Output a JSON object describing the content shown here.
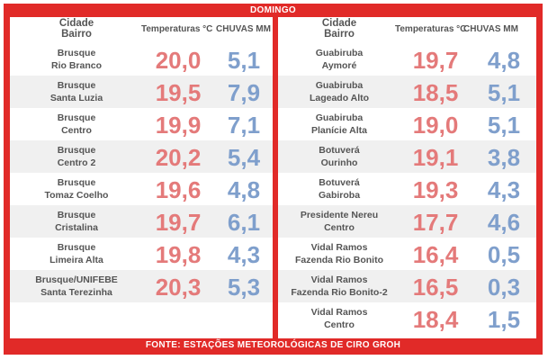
{
  "title": "DOMINGO",
  "footer": "FONTE: ESTAÇÕES METEOROLÓGICAS DE CIRO GROH",
  "headers": {
    "city_line1": "Cidade",
    "city_line2": "Bairro",
    "temperature": "Temperaturas °C",
    "rain": "CHUVAS MM"
  },
  "colors": {
    "frame": "#e12a28",
    "temperature_text": "#e47a7a",
    "rain_text": "#7f9fcc",
    "alt_row": "#f0f0f0"
  },
  "left": [
    {
      "city": "Brusque",
      "district": "Rio Branco",
      "temp": "20,0",
      "rain": "5,1"
    },
    {
      "city": "Brusque",
      "district": "Santa Luzia",
      "temp": "19,5",
      "rain": "7,9"
    },
    {
      "city": "Brusque",
      "district": "Centro",
      "temp": "19,9",
      "rain": "7,1"
    },
    {
      "city": "Brusque",
      "district": "Centro 2",
      "temp": "20,2",
      "rain": "5,4"
    },
    {
      "city": "Brusque",
      "district": "Tomaz Coelho",
      "temp": "19,6",
      "rain": "4,8"
    },
    {
      "city": "Brusque",
      "district": "Cristalina",
      "temp": "19,7",
      "rain": "6,1"
    },
    {
      "city": "Brusque",
      "district": "Limeira Alta",
      "temp": "19,8",
      "rain": "4,3"
    },
    {
      "city": "Brusque/UNIFEBE",
      "district": "Santa Terezinha",
      "temp": "20,3",
      "rain": "5,3"
    }
  ],
  "right": [
    {
      "city": "Guabiruba",
      "district": "Aymoré",
      "temp": "19,7",
      "rain": "4,8"
    },
    {
      "city": "Guabiruba",
      "district": "Lageado Alto",
      "temp": "18,5",
      "rain": "5,1"
    },
    {
      "city": "Guabiruba",
      "district": "Planície Alta",
      "temp": "19,0",
      "rain": "5,1"
    },
    {
      "city": "Botuverá",
      "district": "Ourinho",
      "temp": "19,1",
      "rain": "3,8"
    },
    {
      "city": "Botuverá",
      "district": "Gabiroba",
      "temp": "19,3",
      "rain": "4,3"
    },
    {
      "city": "Presidente Nereu",
      "district": "Centro",
      "temp": "17,7",
      "rain": "4,6"
    },
    {
      "city": "Vidal Ramos",
      "district": "Fazenda Rio Bonito",
      "temp": "16,4",
      "rain": "0,5"
    },
    {
      "city": "Vidal Ramos",
      "district": "Fazenda Rio Bonito-2",
      "temp": "16,5",
      "rain": "0,3"
    },
    {
      "city": "Vidal Ramos",
      "district": "Centro",
      "temp": "18,4",
      "rain": "1,5"
    }
  ]
}
